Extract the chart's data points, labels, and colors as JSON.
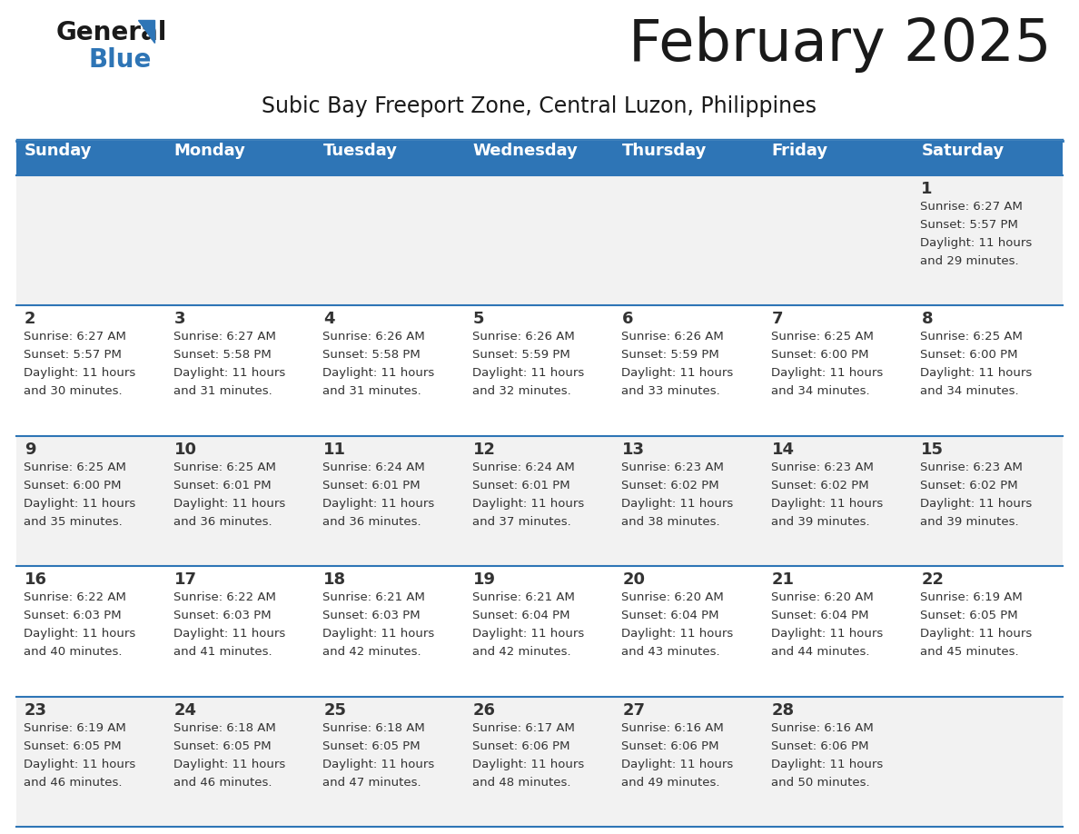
{
  "title": "February 2025",
  "subtitle": "Subic Bay Freeport Zone, Central Luzon, Philippines",
  "header_bg": "#2E75B6",
  "header_text": "#FFFFFF",
  "row_bg_odd": "#F2F2F2",
  "row_bg_even": "#FFFFFF",
  "separator_color": "#2E75B6",
  "text_color": "#333333",
  "days_of_week": [
    "Sunday",
    "Monday",
    "Tuesday",
    "Wednesday",
    "Thursday",
    "Friday",
    "Saturday"
  ],
  "logo_general_color": "#1a1a1a",
  "logo_blue_color": "#2E75B6",
  "calendar_data": [
    [
      null,
      null,
      null,
      null,
      null,
      null,
      {
        "day": 1,
        "sunrise": "6:27 AM",
        "sunset": "5:57 PM",
        "daylight_hours": 11,
        "daylight_minutes": 29
      }
    ],
    [
      {
        "day": 2,
        "sunrise": "6:27 AM",
        "sunset": "5:57 PM",
        "daylight_hours": 11,
        "daylight_minutes": 30
      },
      {
        "day": 3,
        "sunrise": "6:27 AM",
        "sunset": "5:58 PM",
        "daylight_hours": 11,
        "daylight_minutes": 31
      },
      {
        "day": 4,
        "sunrise": "6:26 AM",
        "sunset": "5:58 PM",
        "daylight_hours": 11,
        "daylight_minutes": 31
      },
      {
        "day": 5,
        "sunrise": "6:26 AM",
        "sunset": "5:59 PM",
        "daylight_hours": 11,
        "daylight_minutes": 32
      },
      {
        "day": 6,
        "sunrise": "6:26 AM",
        "sunset": "5:59 PM",
        "daylight_hours": 11,
        "daylight_minutes": 33
      },
      {
        "day": 7,
        "sunrise": "6:25 AM",
        "sunset": "6:00 PM",
        "daylight_hours": 11,
        "daylight_minutes": 34
      },
      {
        "day": 8,
        "sunrise": "6:25 AM",
        "sunset": "6:00 PM",
        "daylight_hours": 11,
        "daylight_minutes": 34
      }
    ],
    [
      {
        "day": 9,
        "sunrise": "6:25 AM",
        "sunset": "6:00 PM",
        "daylight_hours": 11,
        "daylight_minutes": 35
      },
      {
        "day": 10,
        "sunrise": "6:25 AM",
        "sunset": "6:01 PM",
        "daylight_hours": 11,
        "daylight_minutes": 36
      },
      {
        "day": 11,
        "sunrise": "6:24 AM",
        "sunset": "6:01 PM",
        "daylight_hours": 11,
        "daylight_minutes": 36
      },
      {
        "day": 12,
        "sunrise": "6:24 AM",
        "sunset": "6:01 PM",
        "daylight_hours": 11,
        "daylight_minutes": 37
      },
      {
        "day": 13,
        "sunrise": "6:23 AM",
        "sunset": "6:02 PM",
        "daylight_hours": 11,
        "daylight_minutes": 38
      },
      {
        "day": 14,
        "sunrise": "6:23 AM",
        "sunset": "6:02 PM",
        "daylight_hours": 11,
        "daylight_minutes": 39
      },
      {
        "day": 15,
        "sunrise": "6:23 AM",
        "sunset": "6:02 PM",
        "daylight_hours": 11,
        "daylight_minutes": 39
      }
    ],
    [
      {
        "day": 16,
        "sunrise": "6:22 AM",
        "sunset": "6:03 PM",
        "daylight_hours": 11,
        "daylight_minutes": 40
      },
      {
        "day": 17,
        "sunrise": "6:22 AM",
        "sunset": "6:03 PM",
        "daylight_hours": 11,
        "daylight_minutes": 41
      },
      {
        "day": 18,
        "sunrise": "6:21 AM",
        "sunset": "6:03 PM",
        "daylight_hours": 11,
        "daylight_minutes": 42
      },
      {
        "day": 19,
        "sunrise": "6:21 AM",
        "sunset": "6:04 PM",
        "daylight_hours": 11,
        "daylight_minutes": 42
      },
      {
        "day": 20,
        "sunrise": "6:20 AM",
        "sunset": "6:04 PM",
        "daylight_hours": 11,
        "daylight_minutes": 43
      },
      {
        "day": 21,
        "sunrise": "6:20 AM",
        "sunset": "6:04 PM",
        "daylight_hours": 11,
        "daylight_minutes": 44
      },
      {
        "day": 22,
        "sunrise": "6:19 AM",
        "sunset": "6:05 PM",
        "daylight_hours": 11,
        "daylight_minutes": 45
      }
    ],
    [
      {
        "day": 23,
        "sunrise": "6:19 AM",
        "sunset": "6:05 PM",
        "daylight_hours": 11,
        "daylight_minutes": 46
      },
      {
        "day": 24,
        "sunrise": "6:18 AM",
        "sunset": "6:05 PM",
        "daylight_hours": 11,
        "daylight_minutes": 46
      },
      {
        "day": 25,
        "sunrise": "6:18 AM",
        "sunset": "6:05 PM",
        "daylight_hours": 11,
        "daylight_minutes": 47
      },
      {
        "day": 26,
        "sunrise": "6:17 AM",
        "sunset": "6:06 PM",
        "daylight_hours": 11,
        "daylight_minutes": 48
      },
      {
        "day": 27,
        "sunrise": "6:16 AM",
        "sunset": "6:06 PM",
        "daylight_hours": 11,
        "daylight_minutes": 49
      },
      {
        "day": 28,
        "sunrise": "6:16 AM",
        "sunset": "6:06 PM",
        "daylight_hours": 11,
        "daylight_minutes": 50
      },
      null
    ]
  ],
  "title_fontsize": 46,
  "subtitle_fontsize": 17,
  "header_fontsize": 13,
  "day_num_fontsize": 13,
  "info_fontsize": 9.5
}
